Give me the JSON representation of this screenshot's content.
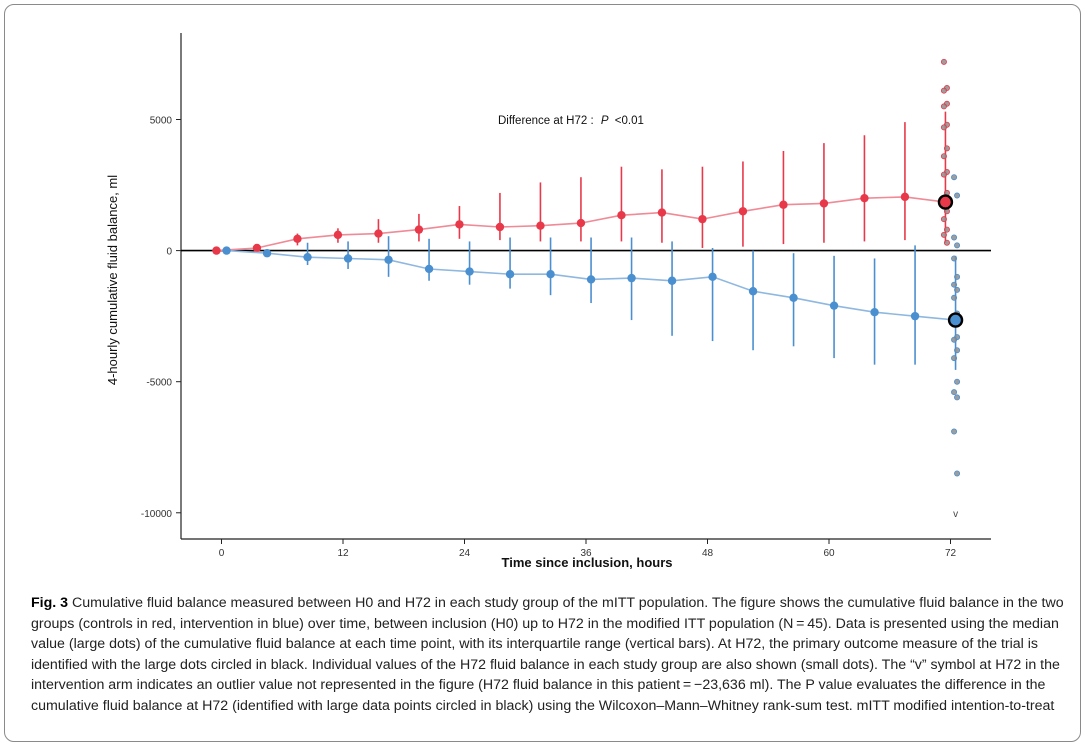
{
  "colors": {
    "control": "#e8394a",
    "intervention": "#4a8fcf",
    "control_light": "#f08a96",
    "intervention_light": "#8fb8e0",
    "individual_dots": "#8c8c8c",
    "highlight_ring": "#000000"
  },
  "chart_data": {
    "type": "line",
    "title": "",
    "xlabel": "Time since inclusion, hours",
    "ylabel": "4-hourly cumulative fluid balance, ml",
    "xlim": [
      -4,
      76
    ],
    "ylim": [
      -11000,
      8300
    ],
    "xticks": [
      0,
      12,
      24,
      36,
      48,
      60,
      72
    ],
    "xtick_labels": [
      "0",
      "12",
      "24",
      "36",
      "48",
      "60",
      "72"
    ],
    "yticks": [
      -10000,
      -5000,
      0,
      5000
    ],
    "ytick_labels": [
      "-10000",
      "-5000",
      "0",
      "5000"
    ],
    "grid": false,
    "annotation": {
      "text": "Difference at H72 :",
      "p_text": "P",
      "p_value": "<0.01"
    },
    "series": [
      {
        "color": "control",
        "x": [
          -0.5,
          3.5,
          7.5,
          11.5,
          15.5,
          19.5,
          23.5,
          27.5,
          31.5,
          35.5,
          39.5,
          43.5,
          47.5,
          51.5,
          55.5,
          59.5,
          63.5,
          67.5,
          71.5
        ],
        "median": [
          0,
          100,
          450,
          600,
          650,
          800,
          1000,
          900,
          950,
          1050,
          1350,
          1450,
          1200,
          1500,
          1750,
          1800,
          2000,
          2050,
          1850
        ],
        "q1": [
          0,
          0,
          200,
          300,
          300,
          350,
          450,
          400,
          350,
          350,
          350,
          300,
          100,
          150,
          250,
          300,
          350,
          400,
          300
        ],
        "q3": [
          0,
          250,
          650,
          850,
          1200,
          1400,
          1700,
          2200,
          2600,
          2800,
          3200,
          3100,
          3200,
          3400,
          3800,
          4100,
          4400,
          4900,
          5300
        ]
      },
      {
        "color": "intervention",
        "x": [
          0.5,
          4.5,
          8.5,
          12.5,
          16.5,
          20.5,
          24.5,
          28.5,
          32.5,
          36.5,
          40.5,
          44.5,
          48.5,
          52.5,
          56.5,
          60.5,
          64.5,
          68.5,
          72.5
        ],
        "median": [
          0,
          -100,
          -250,
          -300,
          -350,
          -700,
          -800,
          -900,
          -900,
          -1100,
          -1050,
          -1150,
          -1000,
          -1550,
          -1800,
          -2100,
          -2350,
          -2500,
          -2650
        ],
        "q1": [
          0,
          -200,
          -550,
          -700,
          -1000,
          -1150,
          -1300,
          -1450,
          -1700,
          -2000,
          -2650,
          -3250,
          -3450,
          -3800,
          -3650,
          -4100,
          -4350,
          -4350,
          -4550
        ],
        "q3": [
          0,
          50,
          300,
          350,
          550,
          450,
          350,
          500,
          500,
          500,
          500,
          350,
          100,
          0,
          -100,
          -200,
          -300,
          200,
          -200
        ]
      }
    ],
    "individual_values": {
      "control": {
        "x": 71.5,
        "values": [
          7200,
          6200,
          6100,
          5600,
          5500,
          4800,
          4700,
          3900,
          3600,
          3000,
          2900,
          2200,
          2000,
          1500,
          1200,
          800,
          600,
          300
        ]
      },
      "intervention": {
        "x": 72.5,
        "values": [
          2800,
          2100,
          500,
          200,
          -300,
          -1000,
          -1300,
          -1500,
          -1800,
          -2400,
          -2700,
          -3300,
          -3400,
          -3800,
          -4100,
          -5000,
          -5400,
          -5600,
          -6900,
          -8500
        ]
      }
    },
    "outlier_marker": {
      "x": 72.5,
      "y": -10000,
      "label": "v"
    }
  },
  "caption": {
    "label": "Fig. 3",
    "text": "Cumulative fluid balance measured between H0 and H72 in each study group of the mITT population. The figure shows the cumulative fluid balance in the two groups (controls in red, intervention in blue) over time, between inclusion (H0) up to H72 in the modified ITT population (N = 45). Data is presented using the median value (large dots) of the cumulative fluid balance at each time point, with its interquartile range (vertical bars). At H72, the primary outcome measure of the trial is identified with the large dots circled in black. Individual values of the H72 fluid balance in each study group are also shown (small dots). The “v” symbol at H72 in the intervention arm indicates an outlier value not represented in the figure (H72 fluid balance in this patient = −23,636 ml). The P value evaluates the difference in the cumulative fluid balance at H72 (identified with large data points circled in black) using the Wilcoxon–Mann–Whitney rank-sum test. mITT modified intention-to-treat"
  }
}
